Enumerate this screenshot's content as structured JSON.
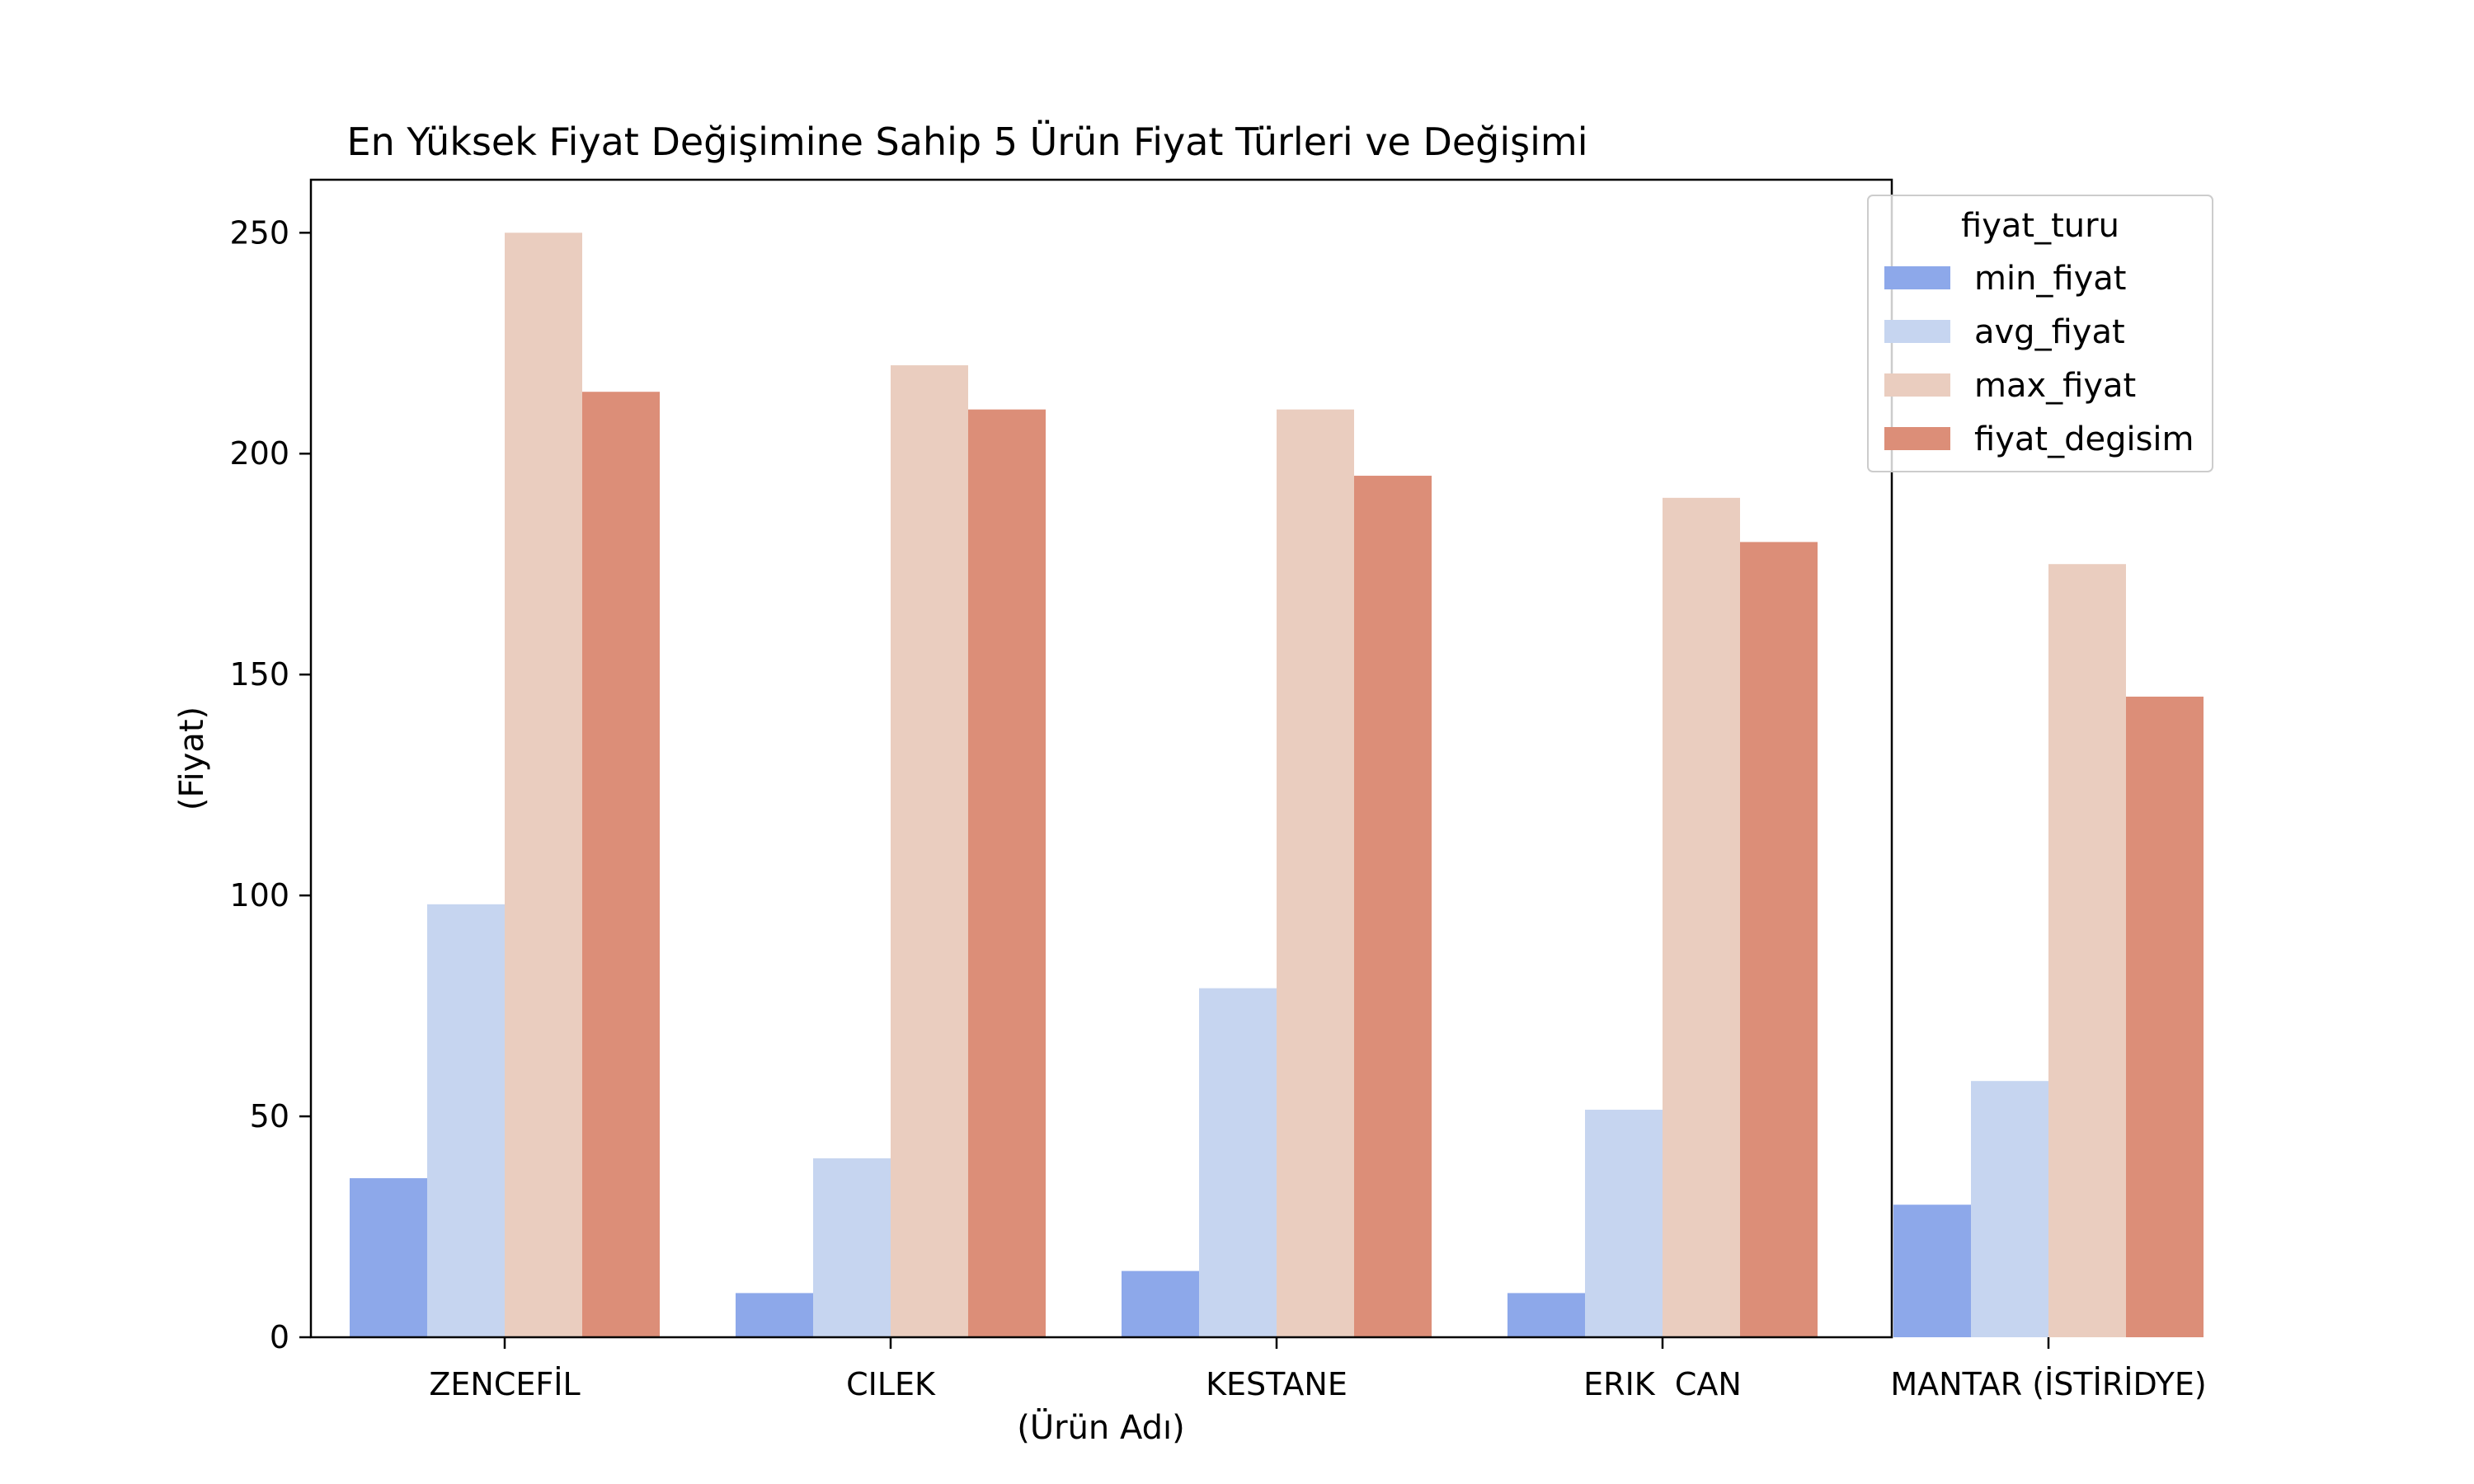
{
  "chart_data": {
    "type": "bar",
    "title": "En Yüksek Fiyat Değişimine Sahip 5 Ürün Fiyat Türleri ve Değişimi",
    "xlabel": "(Ürün Adı)",
    "ylabel": "(Fiyat)",
    "ylim": [
      0,
      262
    ],
    "yticks": [
      0,
      50,
      100,
      150,
      200,
      250
    ],
    "categories": [
      "ZENCEFİL",
      "CILEK",
      "KESTANE",
      "ERIK  CAN",
      "MANTAR (İSTİRİDYE)"
    ],
    "legend": {
      "title": "fiyat_turu",
      "placement": "upper-right"
    },
    "grid": false,
    "series": [
      {
        "name": "min_fiyat",
        "color": "#8da8ea",
        "values": [
          36,
          10,
          15,
          10,
          30
        ]
      },
      {
        "name": "avg_fiyat",
        "color": "#c6d5f0",
        "values": [
          98,
          40.5,
          79,
          51.5,
          58
        ]
      },
      {
        "name": "max_fiyat",
        "color": "#eacdbf",
        "values": [
          250,
          220,
          210,
          190,
          175
        ]
      },
      {
        "name": "fiyat_degisim",
        "color": "#dc8e78",
        "values": [
          214,
          210,
          195,
          180,
          145
        ]
      }
    ]
  }
}
